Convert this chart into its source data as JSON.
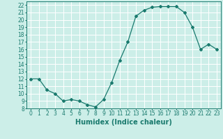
{
  "xlabel": "Humidex (Indice chaleur)",
  "ylabel": "",
  "x": [
    0,
    1,
    2,
    3,
    4,
    5,
    6,
    7,
    8,
    9,
    10,
    11,
    12,
    13,
    14,
    15,
    16,
    17,
    18,
    19,
    20,
    21,
    22,
    23
  ],
  "y": [
    12,
    12,
    10.5,
    10,
    9,
    9.2,
    9,
    8.5,
    8.2,
    9.2,
    11.5,
    14.5,
    17,
    20.5,
    21.3,
    21.7,
    21.8,
    21.8,
    21.8,
    21,
    19,
    16,
    16.7,
    16
  ],
  "line_color": "#1a7a6e",
  "marker": "D",
  "marker_size": 2,
  "bg_color": "#cceee8",
  "grid_color": "#ffffff",
  "ylim": [
    8,
    22.5
  ],
  "xlim": [
    -0.5,
    23.5
  ],
  "yticks": [
    8,
    9,
    10,
    11,
    12,
    13,
    14,
    15,
    16,
    17,
    18,
    19,
    20,
    21,
    22
  ],
  "xticks": [
    0,
    1,
    2,
    3,
    4,
    5,
    6,
    7,
    8,
    9,
    10,
    11,
    12,
    13,
    14,
    15,
    16,
    17,
    18,
    19,
    20,
    21,
    22,
    23
  ],
  "tick_fontsize": 5.5,
  "label_fontsize": 7
}
